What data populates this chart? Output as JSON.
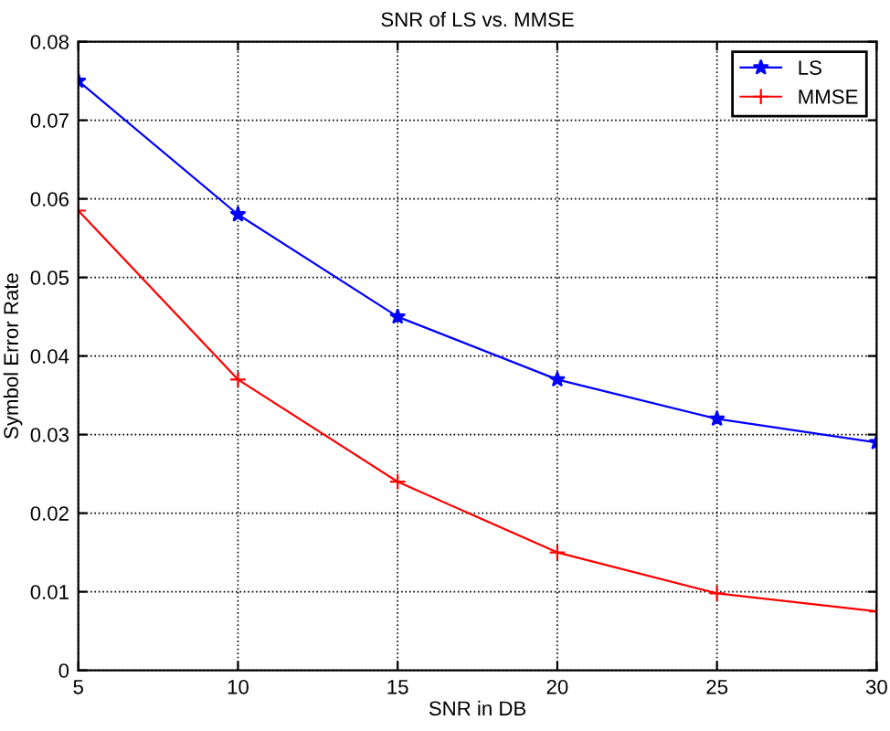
{
  "chart_data": {
    "type": "line",
    "title": "SNR of LS vs. MMSE",
    "xlabel": "SNR in DB",
    "ylabel": "Symbol Error Rate",
    "x": [
      5,
      10,
      15,
      20,
      25,
      30
    ],
    "series": [
      {
        "name": "LS",
        "color": "#0000ff",
        "marker": "star",
        "values": [
          0.075,
          0.058,
          0.045,
          0.037,
          0.032,
          0.029
        ]
      },
      {
        "name": "MMSE",
        "color": "#ff0000",
        "marker": "cross",
        "values": [
          0.0585,
          0.037,
          0.024,
          0.015,
          0.0098,
          0.0075
        ]
      }
    ],
    "xlim": [
      5,
      30
    ],
    "xticks": [
      5,
      10,
      15,
      20,
      25,
      30
    ],
    "ylim": [
      0,
      0.08
    ],
    "yticks": [
      0,
      0.01,
      0.02,
      0.03,
      0.04,
      0.05,
      0.06,
      0.07,
      0.08
    ],
    "grid": true,
    "legend": "top right",
    "line_style": "solid"
  }
}
